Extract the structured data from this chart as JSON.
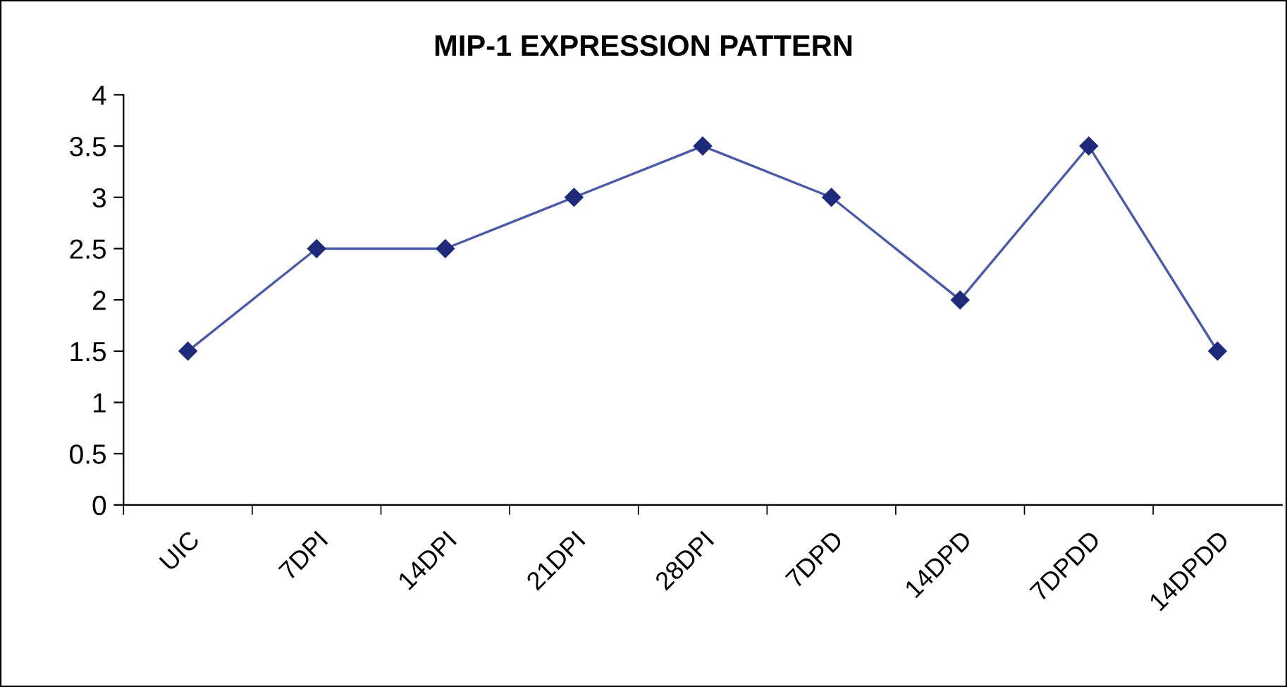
{
  "chart_data": {
    "type": "line",
    "title": "MIP-1 EXPRESSION PATTERN",
    "categories": [
      "UIC",
      "7DPI",
      "14DPI",
      "21DPI",
      "28DPI",
      "7DPD",
      "14DPD",
      "7DPDD",
      "14DPDD"
    ],
    "series": [
      {
        "color": "#4a5aa8",
        "values": [
          1.5,
          2.5,
          2.5,
          3,
          3.5,
          3,
          2,
          3.5,
          1.5
        ]
      }
    ],
    "marker": "diamond",
    "line_style": "solid",
    "grid": false,
    "legend": false,
    "ylim": [
      0,
      4
    ],
    "yticks": [
      0,
      0.5,
      1,
      1.5,
      2,
      2.5,
      3,
      3.5,
      4
    ]
  }
}
